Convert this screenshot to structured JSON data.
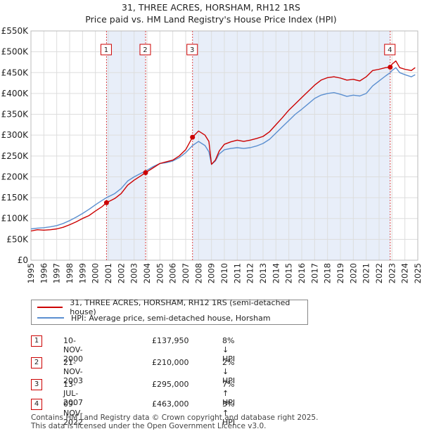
{
  "header": {
    "title_line1": "31, THREE ACRES, HORSHAM, RH12 1RS",
    "title_line2": "Price paid vs. HM Land Registry's House Price Index (HPI)"
  },
  "colors": {
    "price_paid": "#cc0000",
    "hpi": "#5b8fd0",
    "shade": "#e8eef9",
    "grid": "#dddddd"
  },
  "legend": {
    "price_paid_label": "31, THREE ACRES, HORSHAM, RH12 1RS (semi-detached house)",
    "hpi_label": "HPI: Average price, semi-detached house, Horsham"
  },
  "sales": [
    {
      "num": "1",
      "date": "10-NOV-2000",
      "price": "£137,950",
      "delta": "8% ↓ HPI"
    },
    {
      "num": "2",
      "date": "21-NOV-2003",
      "price": "£210,000",
      "delta": "2% ↓ HPI"
    },
    {
      "num": "3",
      "date": "13-JUL-2007",
      "price": "£295,000",
      "delta": "7% ↑ HPI"
    },
    {
      "num": "4",
      "date": "09-NOV-2022",
      "price": "£463,000",
      "delta": "3% ↑ HPI"
    }
  ],
  "footer": {
    "line1": "Contains HM Land Registry data © Crown copyright and database right 2025.",
    "line2": "This data is licensed under the Open Government Licence v3.0."
  },
  "chart_data": {
    "type": "line",
    "title": "31, THREE ACRES, HORSHAM, RH12 1RS",
    "subtitle": "Price paid vs. HM Land Registry's House Price Index (HPI)",
    "xlim": [
      1995,
      2025
    ],
    "ylim": [
      0,
      550000
    ],
    "x_ticks": [
      1995,
      1996,
      1997,
      1998,
      1999,
      2000,
      2001,
      2002,
      2003,
      2004,
      2005,
      2006,
      2007,
      2008,
      2009,
      2010,
      2011,
      2012,
      2013,
      2014,
      2015,
      2016,
      2017,
      2018,
      2019,
      2020,
      2021,
      2022,
      2023,
      2024,
      2025
    ],
    "y_ticks": [
      0,
      50000,
      100000,
      150000,
      200000,
      250000,
      300000,
      350000,
      400000,
      450000,
      500000,
      550000
    ],
    "y_tick_labels": [
      "£0",
      "£50K",
      "£100K",
      "£150K",
      "£200K",
      "£250K",
      "£300K",
      "£350K",
      "£400K",
      "£450K",
      "£500K",
      "£550K"
    ],
    "shaded_ranges": [
      [
        2000.86,
        2003.89
      ],
      [
        2007.53,
        2022.86
      ]
    ],
    "series": [
      {
        "name": "31, THREE ACRES, HORSHAM, RH12 1RS (semi-detached house)",
        "x": [
          1995.0,
          1995.5,
          1996.0,
          1996.5,
          1997.0,
          1997.5,
          1998.0,
          1998.5,
          1999.0,
          1999.5,
          2000.0,
          2000.5,
          2000.86,
          2001.5,
          2002.0,
          2002.5,
          2003.0,
          2003.5,
          2003.89,
          2004.5,
          2005.0,
          2005.5,
          2006.0,
          2006.5,
          2007.0,
          2007.53,
          2008.0,
          2008.5,
          2008.8,
          2009.0,
          2009.3,
          2009.6,
          2010.0,
          2010.5,
          2011.0,
          2011.5,
          2012.0,
          2012.5,
          2013.0,
          2013.5,
          2014.0,
          2014.5,
          2015.0,
          2015.5,
          2016.0,
          2016.5,
          2017.0,
          2017.5,
          2018.0,
          2018.5,
          2019.0,
          2019.5,
          2020.0,
          2020.5,
          2021.0,
          2021.5,
          2022.0,
          2022.5,
          2022.86,
          2023.0,
          2023.3,
          2023.6,
          2024.0,
          2024.5,
          2024.8
        ],
        "y": [
          70000,
          73000,
          72000,
          73000,
          75000,
          79000,
          85000,
          92000,
          100000,
          107000,
          118000,
          128000,
          137950,
          148000,
          160000,
          180000,
          192000,
          202000,
          210000,
          222000,
          232000,
          236000,
          240000,
          250000,
          265000,
          295000,
          310000,
          300000,
          285000,
          230000,
          240000,
          262000,
          278000,
          284000,
          288000,
          285000,
          288000,
          292000,
          297000,
          308000,
          325000,
          342000,
          360000,
          375000,
          390000,
          405000,
          420000,
          432000,
          438000,
          440000,
          437000,
          432000,
          434000,
          430000,
          440000,
          455000,
          458000,
          462000,
          463000,
          470000,
          478000,
          462000,
          458000,
          455000,
          462000
        ]
      },
      {
        "name": "HPI: Average price, semi-detached house, Horsham",
        "x": [
          1995.0,
          1995.5,
          1996.0,
          1996.5,
          1997.0,
          1997.5,
          1998.0,
          1998.5,
          1999.0,
          1999.5,
          2000.0,
          2000.5,
          2000.86,
          2001.5,
          2002.0,
          2002.5,
          2003.0,
          2003.5,
          2003.89,
          2004.5,
          2005.0,
          2005.5,
          2006.0,
          2006.5,
          2007.0,
          2007.53,
          2008.0,
          2008.5,
          2008.8,
          2009.0,
          2009.3,
          2009.6,
          2010.0,
          2010.5,
          2011.0,
          2011.5,
          2012.0,
          2012.5,
          2013.0,
          2013.5,
          2014.0,
          2014.5,
          2015.0,
          2015.5,
          2016.0,
          2016.5,
          2017.0,
          2017.5,
          2018.0,
          2018.5,
          2019.0,
          2019.5,
          2020.0,
          2020.5,
          2021.0,
          2021.5,
          2022.0,
          2022.5,
          2022.86,
          2023.0,
          2023.3,
          2023.6,
          2024.0,
          2024.5,
          2024.8
        ],
        "y": [
          75000,
          77000,
          78000,
          80000,
          83000,
          88000,
          95000,
          103000,
          112000,
          122000,
          133000,
          143000,
          150000,
          160000,
          172000,
          190000,
          200000,
          208000,
          214000,
          225000,
          232000,
          234000,
          238000,
          246000,
          258000,
          275000,
          285000,
          275000,
          260000,
          230000,
          238000,
          255000,
          265000,
          268000,
          270000,
          268000,
          270000,
          274000,
          280000,
          290000,
          305000,
          320000,
          335000,
          350000,
          362000,
          375000,
          388000,
          396000,
          400000,
          402000,
          398000,
          393000,
          396000,
          394000,
          400000,
          418000,
          430000,
          442000,
          450000,
          455000,
          462000,
          450000,
          445000,
          440000,
          445000
        ]
      }
    ],
    "sale_markers": [
      {
        "label": "1",
        "x": 2000.86,
        "y": 137950
      },
      {
        "label": "2",
        "x": 2003.89,
        "y": 210000
      },
      {
        "label": "3",
        "x": 2007.53,
        "y": 295000
      },
      {
        "label": "4",
        "x": 2022.86,
        "y": 463000
      }
    ]
  }
}
